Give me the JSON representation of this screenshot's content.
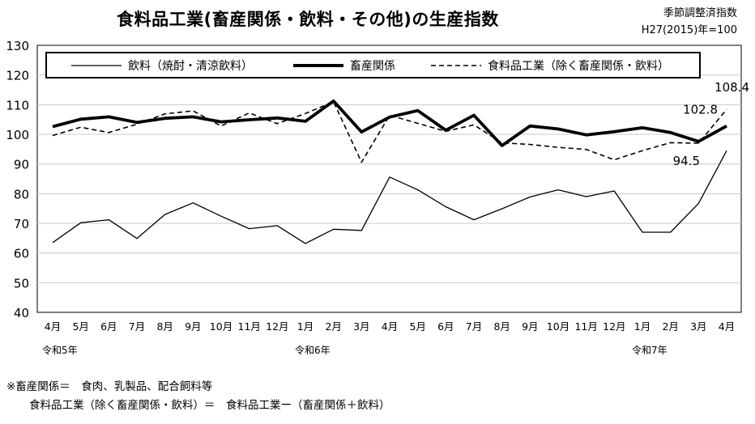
{
  "title": "食料品工業(畜産関係・飲料・その他)の生産指数",
  "notes": {
    "line1": "季節調整済指数",
    "line2": "H27(2015)年=100"
  },
  "footnotes": {
    "line1": "※畜産関係＝　食肉、乳製品、配合飼料等",
    "line2": "食料品工業（除く畜産関係・飲料）＝　食料品工業ー（畜産関係＋飲料）"
  },
  "chart_data": {
    "type": "line",
    "title": "食料品工業(畜産関係・飲料・その他)の生産指数",
    "categories": [
      "4月",
      "5月",
      "6月",
      "7月",
      "8月",
      "9月",
      "10月",
      "11月",
      "12月",
      "1月",
      "2月",
      "3月",
      "4月",
      "5月",
      "6月",
      "7月",
      "8月",
      "9月",
      "10月",
      "11月",
      "12月",
      "1月",
      "2月",
      "3月",
      "4月"
    ],
    "era_labels": [
      {
        "index": 0,
        "label": "令和5年"
      },
      {
        "index": 9,
        "label": "令和6年"
      },
      {
        "index": 21,
        "label": "令和7年"
      }
    ],
    "ylim": [
      40,
      130
    ],
    "yticks": [
      40,
      50,
      60,
      70,
      80,
      90,
      100,
      110,
      120,
      130
    ],
    "grid": true,
    "legend_position": "top",
    "series": [
      {
        "name": "飲料（焼酎・清涼飲料）",
        "style": "thin",
        "color": "#000000",
        "values": [
          63.5,
          70.2,
          71.2,
          64.9,
          73.0,
          76.9,
          72.4,
          68.2,
          69.2,
          63.2,
          68.0,
          67.6,
          85.6,
          81.3,
          75.6,
          71.2,
          74.9,
          78.9,
          81.3,
          79.0,
          80.9,
          67.0,
          67.0,
          76.7,
          94.5
        ]
      },
      {
        "name": "畜産関係",
        "style": "thick",
        "color": "#000000",
        "values": [
          102.6,
          105.1,
          105.9,
          104.0,
          105.4,
          105.9,
          104.2,
          104.9,
          105.5,
          104.4,
          111.2,
          100.8,
          105.8,
          108.0,
          101.4,
          106.4,
          96.2,
          102.8,
          101.8,
          99.8,
          100.9,
          102.2,
          100.6,
          97.6,
          102.8
        ]
      },
      {
        "name": "食料品工業（除く畜産関係・飲料）",
        "style": "dashed",
        "color": "#000000",
        "values": [
          99.6,
          102.4,
          100.6,
          103.4,
          106.9,
          107.9,
          102.8,
          107.2,
          103.6,
          107.0,
          111.0,
          90.6,
          106.4,
          103.7,
          101.0,
          103.2,
          97.1,
          96.6,
          95.6,
          94.9,
          91.4,
          94.5,
          97.2,
          97.0,
          108.4
        ]
      }
    ],
    "annotations": [
      {
        "series": 2,
        "index": 24,
        "text": "108.4"
      },
      {
        "series": 1,
        "index": 24,
        "text": "102.8"
      },
      {
        "series": 0,
        "index": 24,
        "text": "94.5"
      }
    ]
  }
}
